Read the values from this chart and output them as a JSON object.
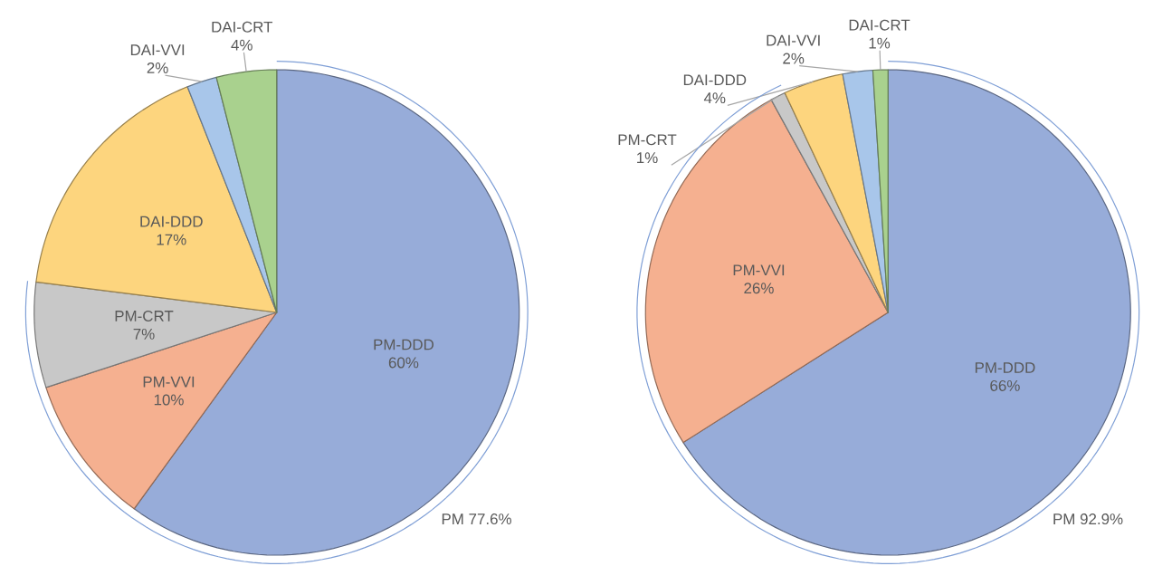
{
  "chart_data": [
    {
      "type": "pie",
      "categories": [
        "PM-DDD",
        "PM-VVI",
        "PM-CRT",
        "DAI-DDD",
        "DAI-VVI",
        "DAI-CRT"
      ],
      "values": [
        60,
        10,
        7,
        17,
        2,
        4
      ],
      "value_labels": [
        "60%",
        "10%",
        "7%",
        "17%",
        "2%",
        "4%"
      ],
      "colors": [
        "#97acd9",
        "#f5b090",
        "#c8c8c8",
        "#fdd57e",
        "#a8c6ea",
        "#a9d18e"
      ],
      "annotations": [
        "PM 77.6%"
      ]
    },
    {
      "type": "pie",
      "categories": [
        "PM-DDD",
        "PM-VVI",
        "PM-CRT",
        "DAI-DDD",
        "DAI-VVI",
        "DAI-CRT"
      ],
      "values": [
        66,
        26,
        1,
        4,
        2,
        1
      ],
      "value_labels": [
        "66%",
        "26%",
        "1%",
        "4%",
        "2%",
        "1%"
      ],
      "colors": [
        "#97acd9",
        "#f5b090",
        "#c8c8c8",
        "#fdd57e",
        "#a8c6ea",
        "#a9d18e"
      ],
      "annotations": [
        "PM 92.9%"
      ]
    }
  ]
}
